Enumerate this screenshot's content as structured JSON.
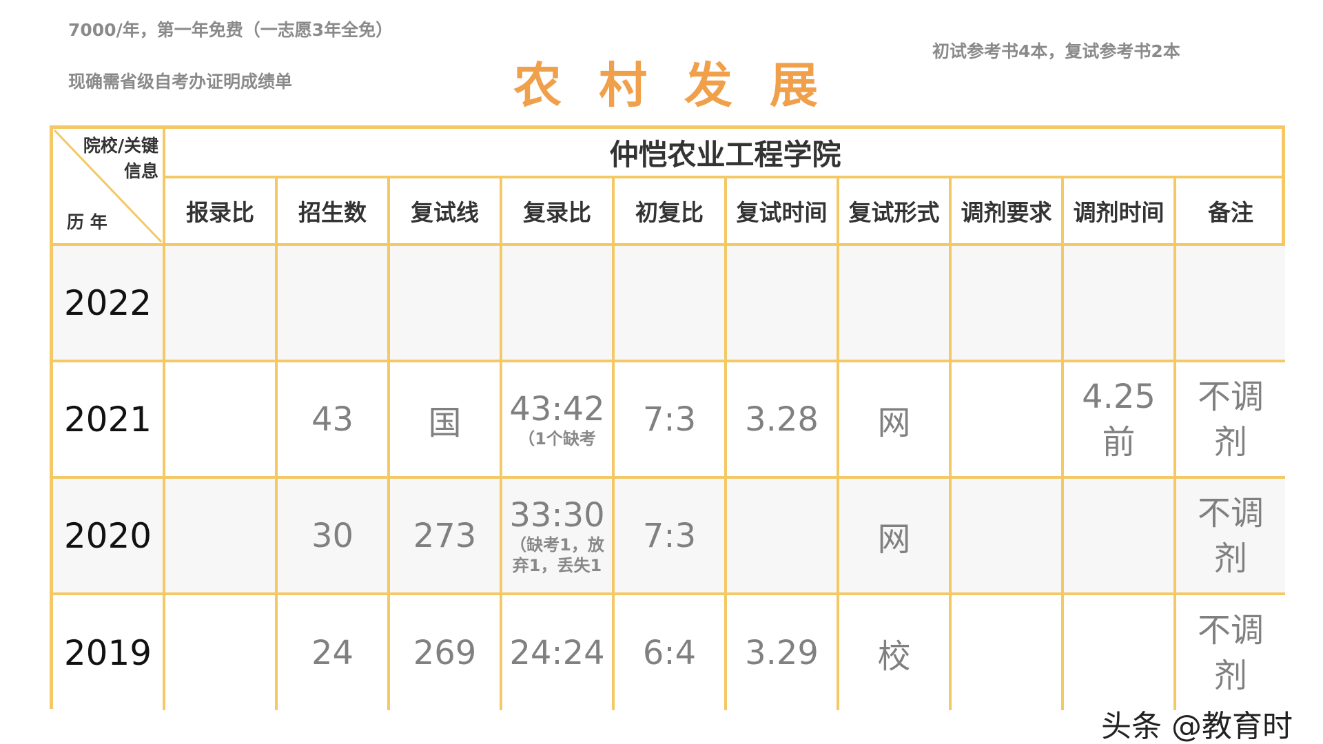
{
  "notes": {
    "fee": "7000/年，第一年免费（一志愿3年全免）",
    "proof": "现确需省级自考办证明成绩单",
    "books": "初试参考书4本，复试参考书2本"
  },
  "title": "农村发展",
  "table": {
    "corner_top": "院校/关键信息",
    "corner_bottom": "历 年",
    "school": "仲恺农业工程学院",
    "headers": [
      "报录比",
      "招生数",
      "复试线",
      "复录比",
      "初复比",
      "复试时间",
      "复试形式",
      "调剂要求",
      "调剂时间",
      "备注"
    ],
    "rows": [
      {
        "year": "2022",
        "cells": [
          "",
          "",
          "",
          "",
          "",
          "",
          "",
          "",
          "",
          ""
        ],
        "subs": [
          "",
          "",
          "",
          "",
          "",
          "",
          "",
          "",
          "",
          ""
        ]
      },
      {
        "year": "2021",
        "cells": [
          "",
          "43",
          "国",
          "43:42",
          "7:3",
          "3.28",
          "网",
          "",
          "4.25前",
          "不调剂"
        ],
        "subs": [
          "",
          "",
          "",
          "（1个缺考",
          "",
          "",
          "",
          "",
          "",
          ""
        ]
      },
      {
        "year": "2020",
        "cells": [
          "",
          "30",
          "273",
          "33:30",
          "7:3",
          "",
          "网",
          "",
          "",
          "不调剂"
        ],
        "subs": [
          "",
          "",
          "",
          "（缺考1，放弃1，丢失1",
          "",
          "",
          "",
          "",
          "",
          ""
        ]
      },
      {
        "year": "2019",
        "cells": [
          "",
          "24",
          "269",
          "24:24",
          "6:4",
          "3.29",
          "校",
          "",
          "",
          "不调剂"
        ],
        "subs": [
          "",
          "",
          "",
          "",
          "",
          "",
          "",
          "",
          "",
          ""
        ]
      }
    ]
  },
  "watermark": "头条 @教育时",
  "colors": {
    "border": "#f3c865",
    "title": "#f0a04a",
    "text": "#808080",
    "row_alt": "#f7f7f7"
  }
}
